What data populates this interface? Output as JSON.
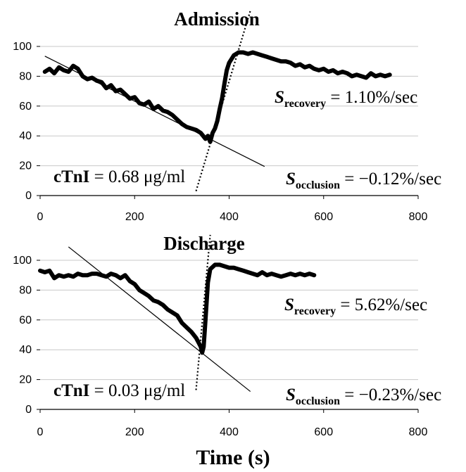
{
  "x_axis_label": "Time (s)",
  "chart_data": [
    {
      "type": "line",
      "title": "Admission",
      "xlim": [
        0,
        800
      ],
      "ylim": [
        0,
        100
      ],
      "xticks": [
        0,
        200,
        400,
        600,
        800
      ],
      "yticks": [
        0,
        20,
        40,
        60,
        80,
        100
      ],
      "grid": "horizontal",
      "series": [
        {
          "x": [
            10,
            20,
            30,
            40,
            50,
            60,
            70,
            80,
            90,
            100,
            110,
            120,
            130,
            140,
            150,
            160,
            170,
            180,
            190,
            200,
            210,
            220,
            230,
            240,
            250,
            260,
            270,
            280,
            290,
            300,
            310,
            320,
            330,
            340,
            345,
            350,
            355,
            360,
            365,
            370,
            375,
            380,
            385,
            390,
            395,
            400,
            410,
            420,
            430,
            440,
            450,
            460,
            470,
            480,
            490,
            500,
            510,
            520,
            530,
            540,
            550,
            560,
            570,
            580,
            590,
            600,
            610,
            620,
            630,
            640,
            650,
            660,
            670,
            680,
            690,
            700,
            710,
            720,
            730,
            740
          ],
          "y": [
            83,
            85,
            82,
            86,
            84,
            83,
            87,
            85,
            80,
            78,
            79,
            77,
            76,
            72,
            74,
            70,
            71,
            68,
            65,
            66,
            62,
            61,
            63,
            58,
            60,
            57,
            56,
            54,
            51,
            48,
            46,
            45,
            44,
            42,
            40,
            38,
            40,
            36,
            42,
            45,
            50,
            58,
            65,
            75,
            84,
            89,
            94,
            96,
            96,
            95,
            96,
            95,
            94,
            93,
            92,
            91,
            90,
            90,
            89,
            87,
            88,
            86,
            87,
            85,
            84,
            85,
            83,
            84,
            82,
            83,
            82,
            80,
            81,
            80,
            79,
            82,
            80,
            81,
            80,
            81
          ]
        }
      ],
      "fit_lines": [
        {
          "x": [
            10,
            475
          ],
          "y": [
            93.5,
            19.5
          ]
        },
        {
          "x": [
            330,
            445
          ],
          "y": [
            3,
            124
          ]
        }
      ],
      "annotations": {
        "recovery": {
          "s": "S",
          "sub": "recovery",
          "value": " = 1.10%/sec"
        },
        "occlusion": {
          "s": "S",
          "sub": "occlusion",
          "value": " = −0.12%/sec"
        },
        "ctni": {
          "label": "cTnI",
          "value": " = 0.68 μg/ml"
        }
      }
    },
    {
      "type": "line",
      "title": "Discharge",
      "xlim": [
        0,
        800
      ],
      "ylim": [
        0,
        100
      ],
      "xticks": [
        0,
        200,
        400,
        600,
        800
      ],
      "yticks": [
        0,
        20,
        40,
        60,
        80,
        100
      ],
      "grid": "horizontal",
      "series": [
        {
          "x": [
            0,
            10,
            20,
            30,
            40,
            50,
            60,
            70,
            80,
            90,
            100,
            110,
            120,
            130,
            140,
            150,
            160,
            170,
            180,
            190,
            200,
            210,
            220,
            230,
            240,
            250,
            260,
            270,
            280,
            290,
            300,
            310,
            320,
            330,
            335,
            340,
            343,
            346,
            350,
            355,
            360,
            370,
            380,
            390,
            400,
            410,
            420,
            430,
            440,
            450,
            460,
            470,
            480,
            490,
            500,
            510,
            520,
            530,
            540,
            550,
            560,
            570,
            580
          ],
          "y": [
            93,
            92,
            93,
            88,
            90,
            89,
            90,
            89,
            91,
            90,
            90,
            91,
            91,
            90,
            89,
            91,
            90,
            88,
            90,
            86,
            84,
            80,
            78,
            76,
            73,
            72,
            70,
            67,
            65,
            63,
            58,
            55,
            52,
            48,
            45,
            42,
            38,
            42,
            60,
            85,
            94,
            97,
            97,
            96,
            95,
            95,
            94,
            93,
            92,
            91,
            90,
            92,
            90,
            91,
            90,
            89,
            90,
            91,
            90,
            91,
            90,
            91,
            90
          ]
        }
      ],
      "fit_lines": [
        {
          "x": [
            60,
            445
          ],
          "y": [
            109,
            12
          ]
        },
        {
          "x": [
            330,
            360
          ],
          "y": [
            13,
            117
          ]
        }
      ],
      "annotations": {
        "recovery": {
          "s": "S",
          "sub": "recovery",
          "value": " = 5.62%/sec"
        },
        "occlusion": {
          "s": "S",
          "sub": "occlusion",
          "value": " = −0.23%/sec"
        },
        "ctni": {
          "label": "cTnI",
          "value": " = 0.03 μg/ml"
        }
      }
    }
  ]
}
